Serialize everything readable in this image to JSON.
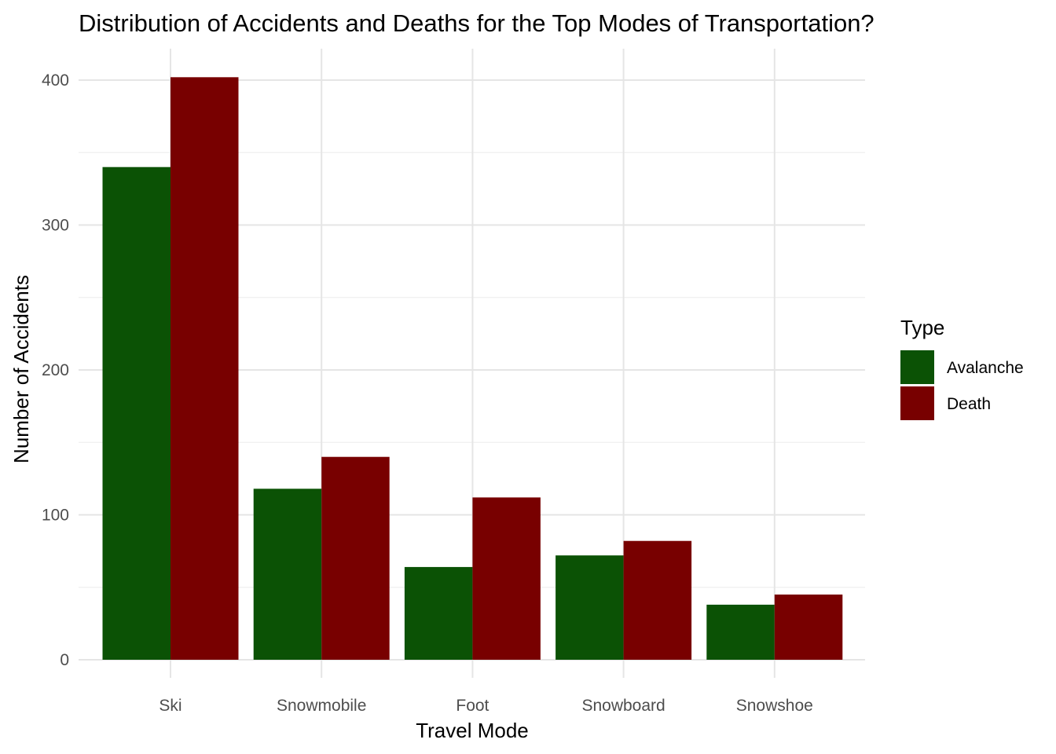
{
  "chart_data": {
    "type": "bar",
    "title": "Distribution of Accidents and Deaths for the Top Modes of Transportation?",
    "xlabel": "Travel Mode",
    "ylabel": "Number of Accidents",
    "categories": [
      "Ski",
      "Snowmobile",
      "Foot",
      "Snowboard",
      "Snowshoe"
    ],
    "series": [
      {
        "name": "Avalanche",
        "color": "#0b5205",
        "values": [
          340,
          118,
          64,
          72,
          38
        ]
      },
      {
        "name": "Death",
        "color": "#780000",
        "values": [
          402,
          140,
          112,
          82,
          45
        ]
      }
    ],
    "ylim": [
      0,
      420
    ],
    "yticks": [
      0,
      100,
      200,
      300,
      400
    ],
    "grid": true,
    "legend": {
      "title": "Type",
      "position": "right"
    }
  }
}
